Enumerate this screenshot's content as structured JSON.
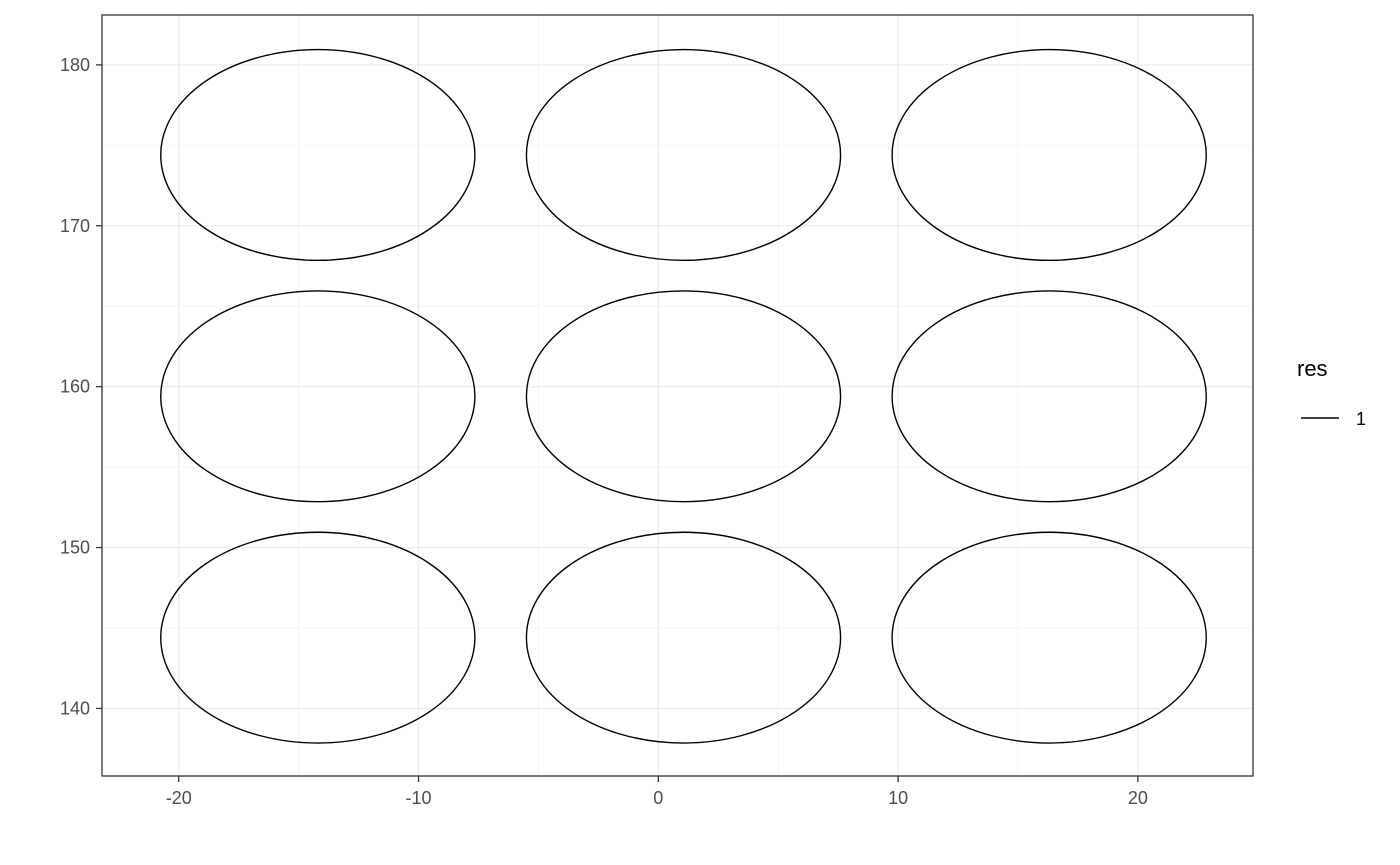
{
  "chart_data": {
    "type": "line",
    "title": "",
    "xlabel": "",
    "ylabel": "",
    "xlim": [
      -23.2,
      24.8
    ],
    "ylim": [
      135.8,
      183.1
    ],
    "x_ticks": [
      -20,
      -10,
      0,
      10,
      20
    ],
    "x_tick_labels": [
      "-20",
      "-10",
      "0",
      "10",
      "20"
    ],
    "y_ticks": [
      140,
      150,
      160,
      170,
      180
    ],
    "y_tick_labels": [
      "140",
      "150",
      "160",
      "170",
      "180"
    ],
    "grid": true,
    "legend": {
      "title": "res",
      "placement": "right",
      "entries": [
        {
          "label": "1"
        }
      ]
    },
    "series": [
      {
        "name": "1",
        "color": "#000000",
        "shape": "ellipse",
        "ellipses": [
          {
            "cx": -14.2,
            "cy": 174.4,
            "rx": 6.55,
            "ry": 6.55
          },
          {
            "cx": 1.05,
            "cy": 174.4,
            "rx": 6.55,
            "ry": 6.55
          },
          {
            "cx": 16.3,
            "cy": 174.4,
            "rx": 6.55,
            "ry": 6.55
          },
          {
            "cx": -14.2,
            "cy": 159.4,
            "rx": 6.55,
            "ry": 6.55
          },
          {
            "cx": 1.05,
            "cy": 159.4,
            "rx": 6.55,
            "ry": 6.55
          },
          {
            "cx": 16.3,
            "cy": 159.4,
            "rx": 6.55,
            "ry": 6.55
          },
          {
            "cx": -14.2,
            "cy": 144.4,
            "rx": 6.55,
            "ry": 6.55
          },
          {
            "cx": 1.05,
            "cy": 144.4,
            "rx": 6.55,
            "ry": 6.55
          },
          {
            "cx": 16.3,
            "cy": 144.4,
            "rx": 6.55,
            "ry": 6.55
          }
        ]
      }
    ],
    "colors": {
      "panel_border": "#333333",
      "grid_major": "#ebebeb",
      "grid_minor": "#f5f5f5",
      "tick": "#333333",
      "line": "#000000"
    }
  }
}
